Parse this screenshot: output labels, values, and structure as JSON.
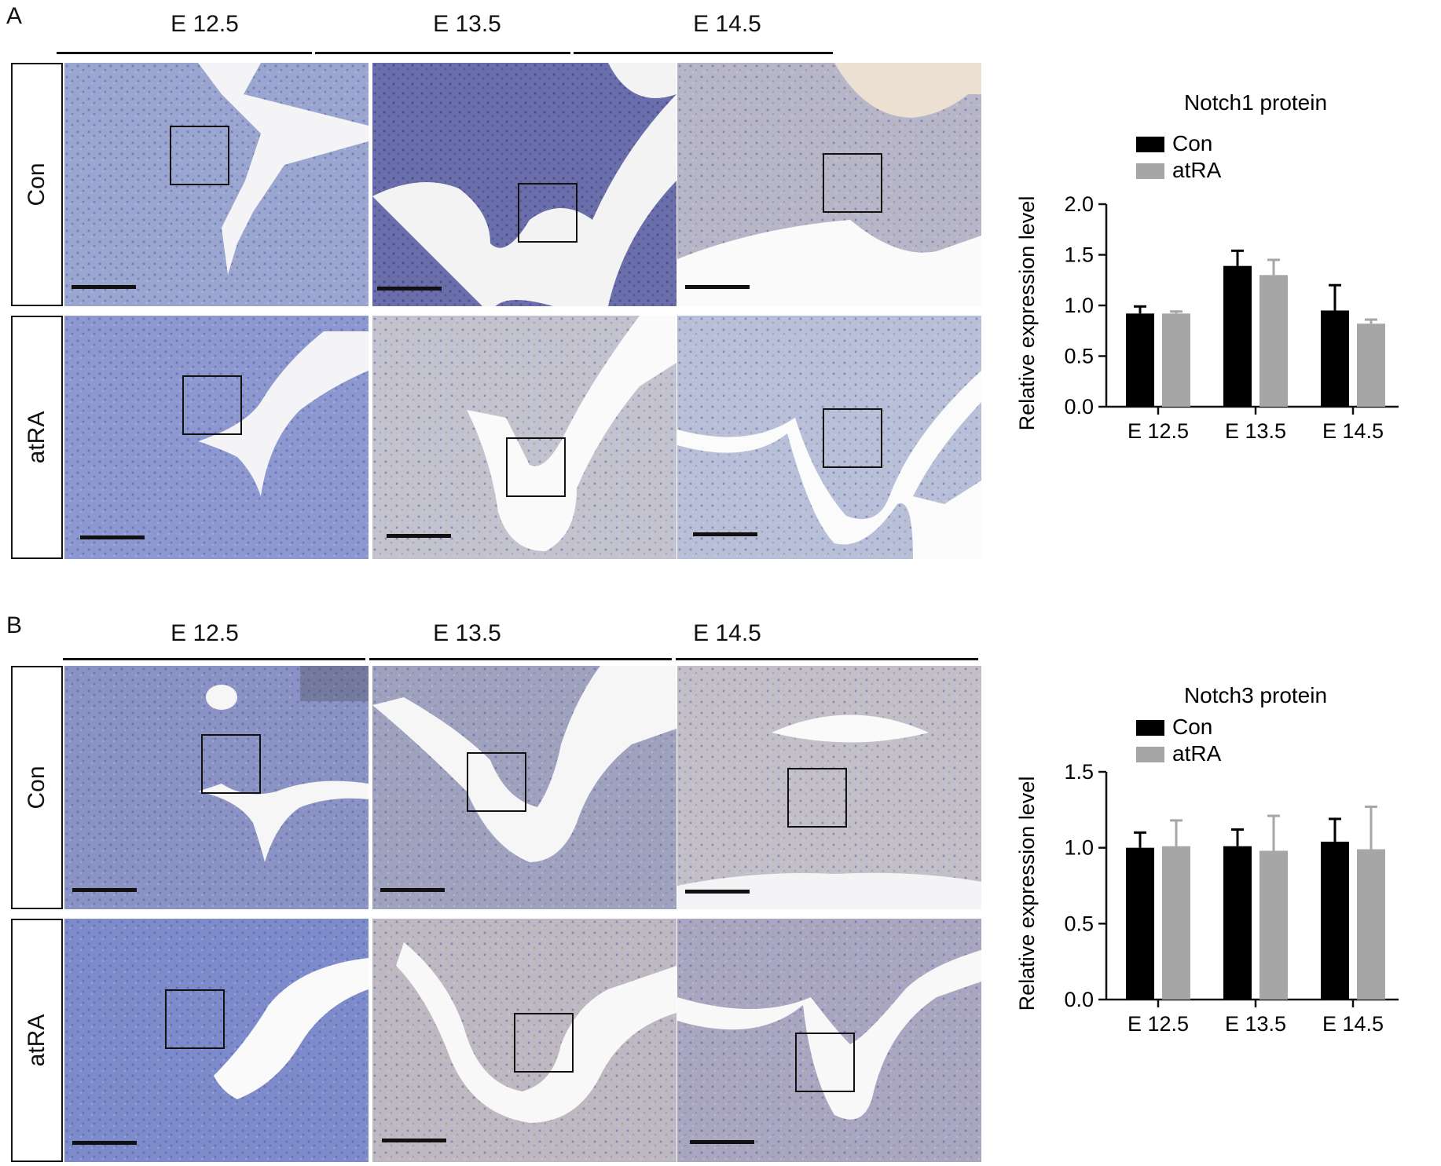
{
  "figure": {
    "panels": [
      {
        "letter": "A",
        "columns": [
          "E 12.5",
          "E 13.5",
          "E 14.5"
        ],
        "rows": [
          "Con",
          "atRA"
        ]
      },
      {
        "letter": "B",
        "columns": [
          "E 12.5",
          "E 13.5",
          "E 14.5"
        ],
        "rows": [
          "Con",
          "atRA"
        ]
      }
    ]
  },
  "colors": {
    "con": "#000000",
    "atra": "#a6a6a6"
  },
  "chart_data": [
    {
      "type": "bar",
      "title": "Notch1 protein",
      "ylabel": "Relative expression level",
      "xlabel": "",
      "categories": [
        "E 12.5",
        "E 13.5",
        "E 14.5"
      ],
      "ylim": [
        0,
        2.0
      ],
      "yticks": [
        "0.0",
        "0.5",
        "1.0",
        "1.5",
        "2.0"
      ],
      "legend": "top-left",
      "grid": false,
      "series": [
        {
          "name": "Con",
          "values": [
            0.92,
            1.39,
            0.95
          ],
          "errors": [
            0.07,
            0.15,
            0.25
          ]
        },
        {
          "name": "atRA",
          "values": [
            0.92,
            1.3,
            0.82
          ],
          "errors": [
            0.02,
            0.15,
            0.04
          ]
        }
      ]
    },
    {
      "type": "bar",
      "title": "Notch3 protein",
      "ylabel": "Relative expression level",
      "xlabel": "",
      "categories": [
        "E 12.5",
        "E 13.5",
        "E 14.5"
      ],
      "ylim": [
        0,
        1.5
      ],
      "yticks": [
        "0.0",
        "0.5",
        "1.0",
        "1.5"
      ],
      "legend": "top-left",
      "grid": false,
      "series": [
        {
          "name": "Con",
          "values": [
            1.0,
            1.01,
            1.04
          ],
          "errors": [
            0.1,
            0.11,
            0.15
          ]
        },
        {
          "name": "atRA",
          "values": [
            1.01,
            0.98,
            0.99
          ],
          "errors": [
            0.17,
            0.23,
            0.28
          ]
        }
      ]
    }
  ]
}
